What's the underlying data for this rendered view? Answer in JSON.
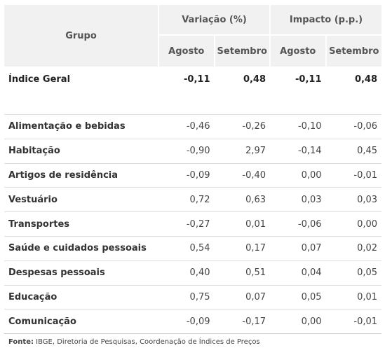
{
  "header": {
    "group_label": "Grupo",
    "variation_label": "Variação (%)",
    "impact_label": "Impacto (p.p.)",
    "sub_cols": [
      "Agosto",
      "Setembro",
      "Agosto",
      "Setembro"
    ]
  },
  "general": {
    "name": "Índice Geral",
    "values": [
      "-0,11",
      "0,48",
      "-0,11",
      "0,48"
    ]
  },
  "rows": [
    {
      "name": "Alimentação e bebidas",
      "values": [
        "-0,46",
        "-0,26",
        "-0,10",
        "-0,06"
      ]
    },
    {
      "name": "Habitação",
      "values": [
        "-0,90",
        "2,97",
        "-0,14",
        "0,45"
      ]
    },
    {
      "name": "Artigos de residência",
      "values": [
        "-0,09",
        "-0,40",
        "0,00",
        "-0,01"
      ]
    },
    {
      "name": "Vestuário",
      "values": [
        "0,72",
        "0,63",
        "0,03",
        "0,03"
      ]
    },
    {
      "name": "Transportes",
      "values": [
        "-0,27",
        "0,01",
        "-0,06",
        "0,00"
      ]
    },
    {
      "name": "Saúde e cuidados pessoais",
      "values": [
        "0,54",
        "0,17",
        "0,07",
        "0,02"
      ]
    },
    {
      "name": "Despesas pessoais",
      "values": [
        "0,40",
        "0,51",
        "0,04",
        "0,05"
      ]
    },
    {
      "name": "Educação",
      "values": [
        "0,75",
        "0,07",
        "0,05",
        "0,01"
      ]
    },
    {
      "name": "Comunicação",
      "values": [
        "-0,09",
        "-0,17",
        "0,00",
        "-0,01"
      ]
    }
  ],
  "footer": {
    "label": "Fonte:",
    "text": " IBGE, Diretoria de Pesquisas, Coordenação de Índices de Preços"
  }
}
